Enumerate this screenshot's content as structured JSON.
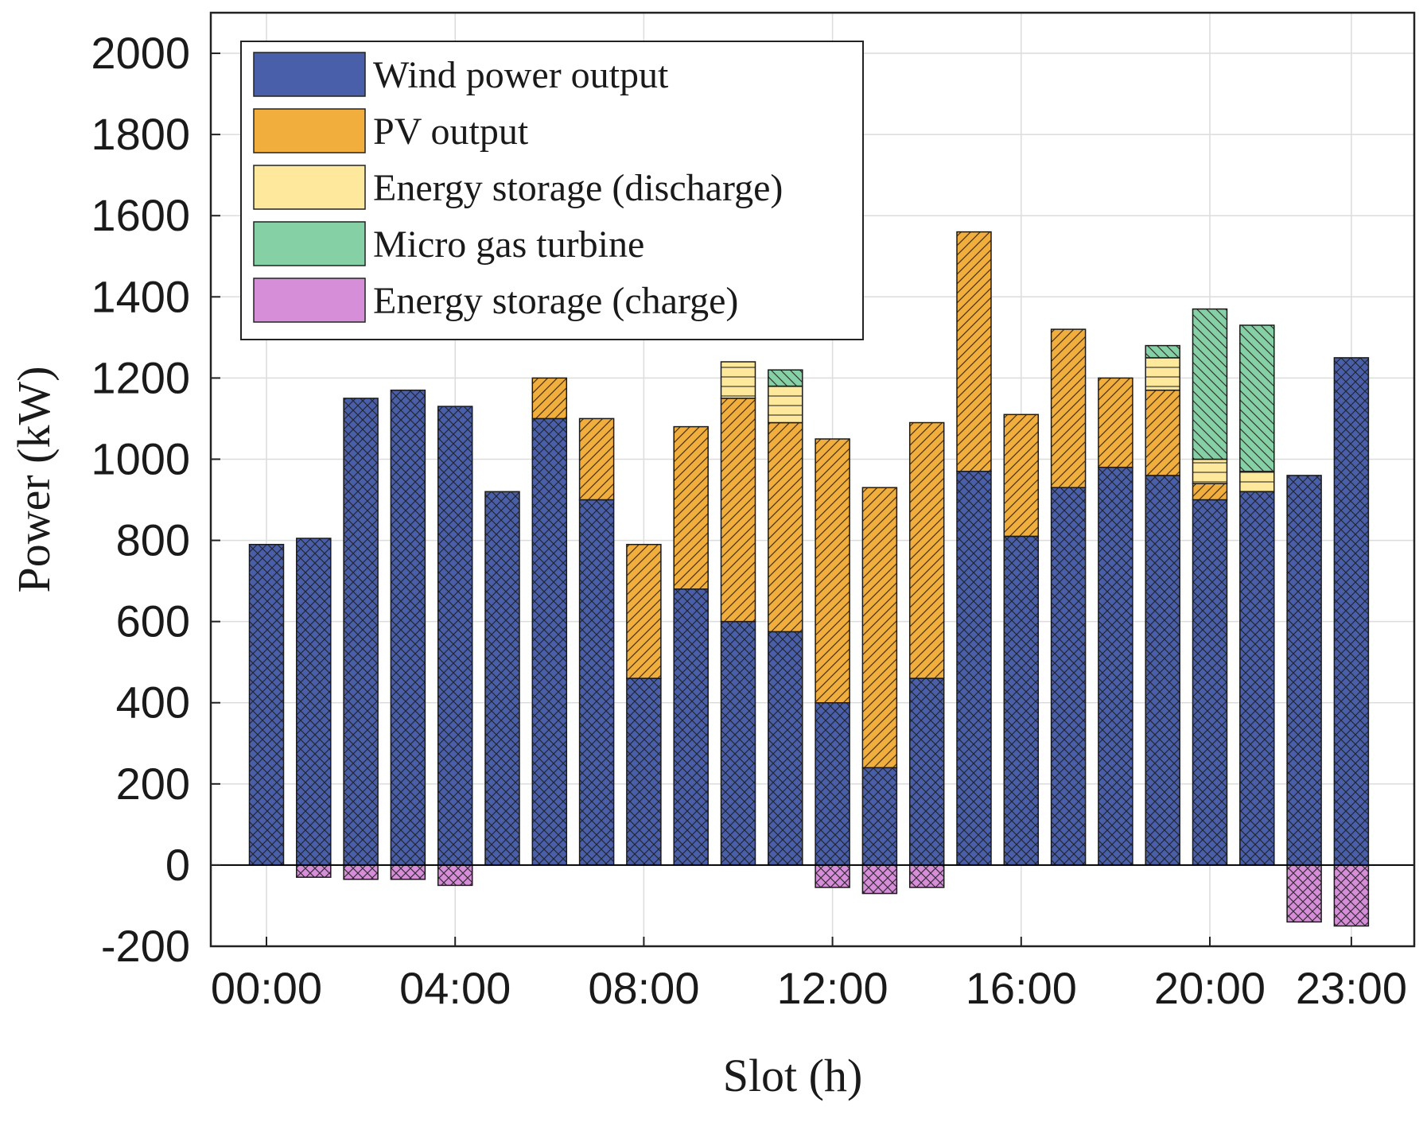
{
  "chart_data": {
    "type": "bar",
    "stacked": true,
    "title": "",
    "xlabel": "Slot (h)",
    "ylabel": "Power (kW)",
    "ylim": [
      -200,
      2100
    ],
    "yticks": [
      -200,
      0,
      200,
      400,
      600,
      800,
      1000,
      1200,
      1400,
      1600,
      1800,
      2000
    ],
    "xticks": [
      {
        "index": 0,
        "label": "00:00"
      },
      {
        "index": 4,
        "label": "04:00"
      },
      {
        "index": 8,
        "label": "08:00"
      },
      {
        "index": 12,
        "label": "12:00"
      },
      {
        "index": 16,
        "label": "16:00"
      },
      {
        "index": 20,
        "label": "20:00"
      },
      {
        "index": 23,
        "label": "23:00"
      }
    ],
    "grid": true,
    "legend_position": "top-left",
    "categories": [
      "0",
      "1",
      "2",
      "3",
      "4",
      "5",
      "6",
      "7",
      "8",
      "9",
      "10",
      "11",
      "12",
      "13",
      "14",
      "15",
      "16",
      "17",
      "18",
      "19",
      "20",
      "21",
      "22",
      "23"
    ],
    "series": [
      {
        "key": "wind",
        "name": "Wind power output",
        "color": "#4a5faa",
        "pattern": "crosshatch",
        "values": [
          790,
          805,
          1150,
          1170,
          1130,
          920,
          1100,
          900,
          460,
          680,
          600,
          575,
          400,
          240,
          460,
          970,
          810,
          930,
          980,
          960,
          900,
          920,
          960,
          1250
        ]
      },
      {
        "key": "pv",
        "name": "PV output",
        "color": "#f1ae3c",
        "pattern": "diagonal",
        "values": [
          0,
          0,
          0,
          0,
          0,
          0,
          100,
          200,
          330,
          400,
          550,
          515,
          650,
          690,
          630,
          590,
          300,
          390,
          220,
          210,
          40,
          0,
          0,
          0
        ]
      },
      {
        "key": "ess_dis",
        "name": "Energy storage (discharge)",
        "color": "#fde89c",
        "pattern": "horizontal",
        "values": [
          0,
          0,
          0,
          0,
          0,
          0,
          0,
          0,
          0,
          0,
          90,
          90,
          0,
          0,
          0,
          0,
          0,
          0,
          0,
          80,
          60,
          50,
          0,
          0
        ]
      },
      {
        "key": "mgt",
        "name": "Micro gas turbine",
        "color": "#86d0a6",
        "pattern": "diagonal-back",
        "values": [
          0,
          0,
          0,
          0,
          0,
          0,
          0,
          0,
          0,
          0,
          0,
          40,
          0,
          0,
          0,
          0,
          0,
          0,
          0,
          30,
          370,
          360,
          0,
          0
        ]
      },
      {
        "key": "ess_ch",
        "name": "Energy storage (charge)",
        "color": "#d68ed9",
        "pattern": "crosshatch",
        "values": [
          0,
          -30,
          -35,
          -35,
          -50,
          0,
          0,
          0,
          0,
          0,
          0,
          0,
          -55,
          -70,
          -55,
          0,
          0,
          0,
          0,
          0,
          0,
          0,
          -140,
          -150
        ]
      }
    ]
  }
}
